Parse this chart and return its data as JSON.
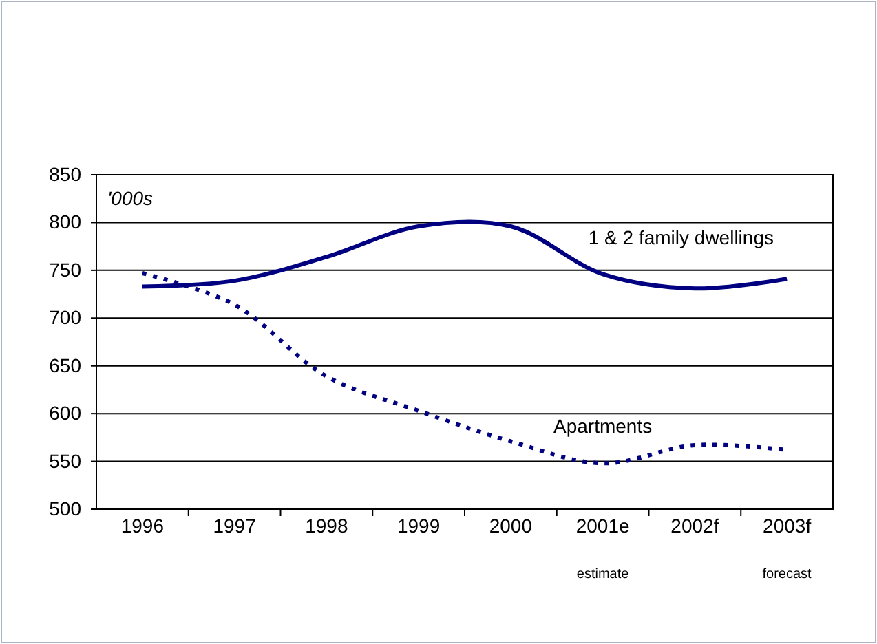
{
  "chart_data": {
    "type": "line",
    "categories": [
      "1996",
      "1997",
      "1998",
      "1999",
      "2000",
      "2001e",
      "2002f",
      "2003f"
    ],
    "series": [
      {
        "name": "1 & 2 family dwellings",
        "color": "#000080",
        "line_style": "solid",
        "values": [
          733,
          739,
          764,
          796,
          796,
          746,
          731,
          741
        ]
      },
      {
        "name": "Apartments",
        "color": "#000080",
        "line_style": "dotted",
        "values": [
          747,
          714,
          639,
          603,
          571,
          548,
          567,
          562
        ]
      }
    ],
    "ylim": [
      500,
      850
    ],
    "yticks": [
      500,
      550,
      600,
      650,
      700,
      750,
      800,
      850
    ],
    "grid": "y",
    "legend": false,
    "marker": "none",
    "annotations": [
      "'000s",
      "estimate",
      "forecast"
    ]
  }
}
